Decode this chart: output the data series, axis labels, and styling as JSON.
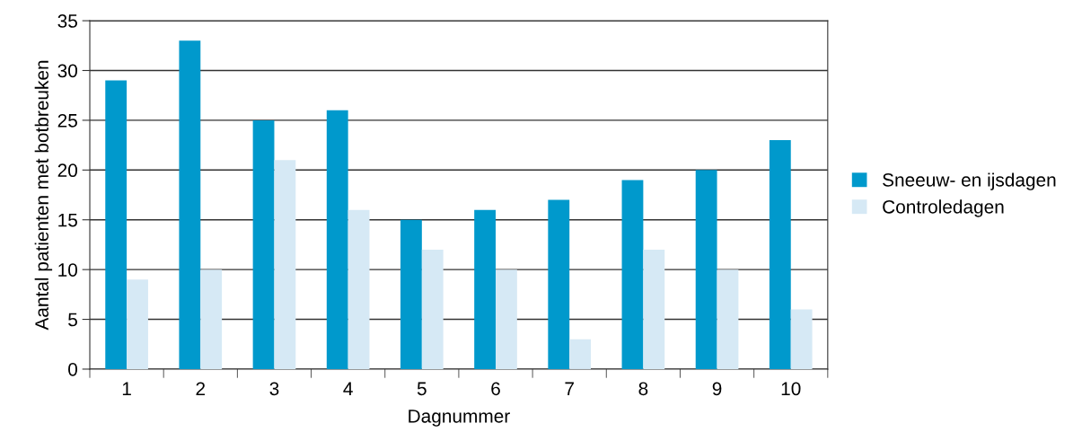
{
  "chart_data": {
    "type": "bar",
    "xlabel": "Dagnummer",
    "ylabel": "Aantal patienten met botbreuken",
    "categories": [
      "1",
      "2",
      "3",
      "4",
      "5",
      "6",
      "7",
      "8",
      "9",
      "10"
    ],
    "series": [
      {
        "name": "Sneeuw- en ijsdagen",
        "color": "#0099cc",
        "values": [
          29,
          33,
          25,
          26,
          15,
          16,
          17,
          19,
          20,
          23
        ]
      },
      {
        "name": "Controledagen",
        "color": "#d6e9f5",
        "values": [
          9,
          10,
          21,
          16,
          12,
          10,
          3,
          12,
          10,
          6
        ]
      }
    ],
    "ylim": [
      0,
      35
    ],
    "yticks": [
      0,
      5,
      10,
      15,
      20,
      25,
      30,
      35
    ],
    "grid": "y",
    "legend": "right"
  }
}
